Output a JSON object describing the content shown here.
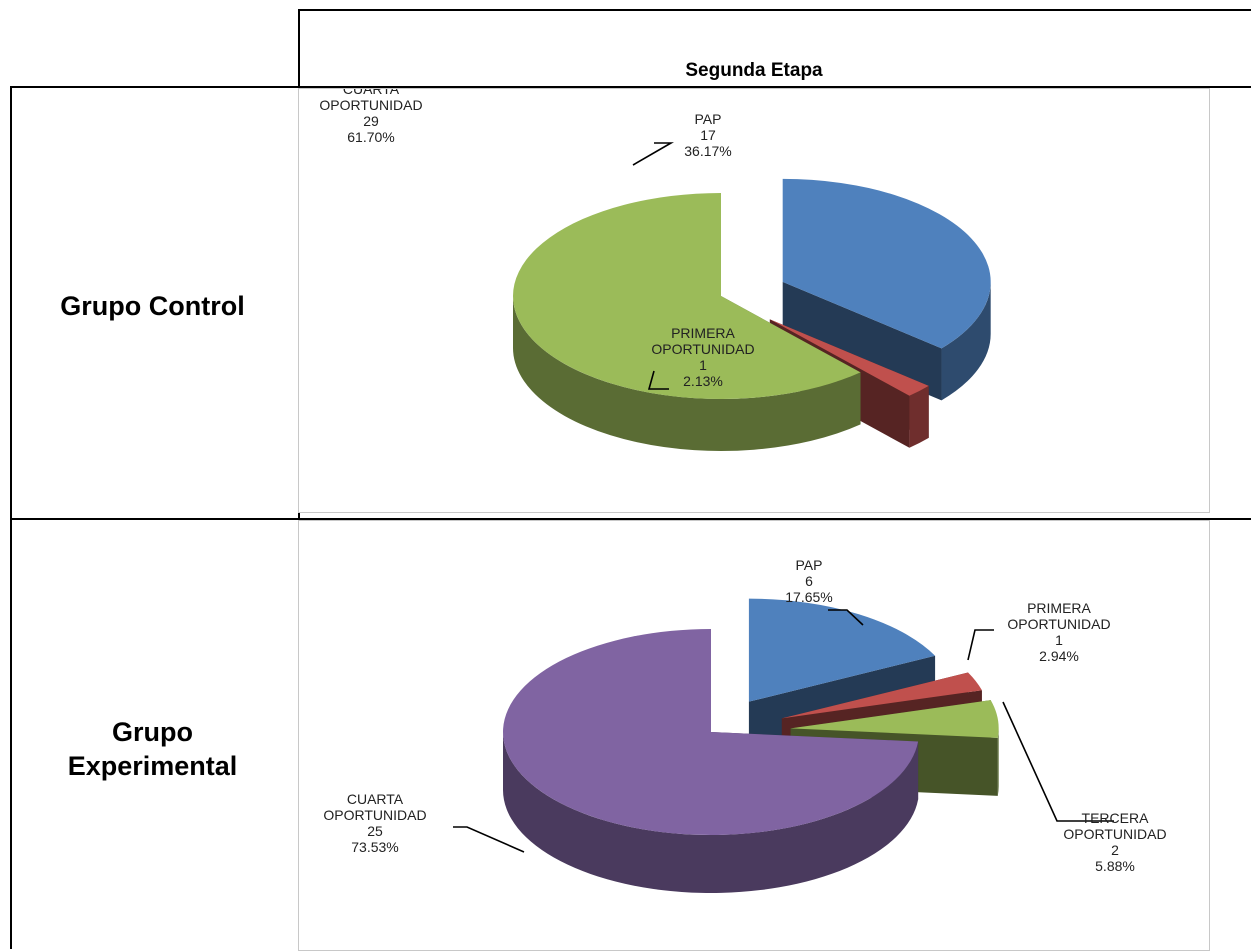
{
  "table": {
    "header": "Segunda Etapa",
    "rows": [
      {
        "label": "Grupo Control"
      },
      {
        "label_lines": [
          "Grupo",
          "Experimental"
        ]
      }
    ]
  },
  "chart_data": [
    {
      "type": "pie",
      "style": "3d-exploded",
      "slices": [
        {
          "name": "PAP",
          "label_lines": [
            "PAP"
          ],
          "value": 17,
          "value_label": "17",
          "percent": "36.17%",
          "color": "#4f81bd"
        },
        {
          "name": "PRIMERA OPORTUNIDAD",
          "label_lines": [
            "PRIMERA",
            "OPORTUNIDAD"
          ],
          "value": 1,
          "value_label": "1",
          "percent": "2.13%",
          "color": "#c0504d"
        },
        {
          "name": "CUARTA OPORTUNIDAD",
          "label_lines": [
            "CUARTA",
            "OPORTUNIDAD"
          ],
          "value": 29,
          "value_label": "29",
          "percent": "61.70%",
          "color": "#9bbb59"
        }
      ]
    },
    {
      "type": "pie",
      "style": "3d-exploded",
      "slices": [
        {
          "name": "PAP",
          "label_lines": [
            "PAP"
          ],
          "value": 6,
          "value_label": "6",
          "percent": "17.65%",
          "color": "#4f81bd"
        },
        {
          "name": "PRIMERA OPORTUNIDAD",
          "label_lines": [
            "PRIMERA",
            "OPORTUNIDAD"
          ],
          "value": 1,
          "value_label": "1",
          "percent": "2.94%",
          "color": "#c0504d"
        },
        {
          "name": "TERCERA OPORTUNIDAD",
          "label_lines": [
            "TERCERA",
            "OPORTUNIDAD"
          ],
          "value": 2,
          "value_label": "2",
          "percent": "5.88%",
          "color": "#9bbb59"
        },
        {
          "name": "CUARTA OPORTUNIDAD",
          "label_lines": [
            "CUARTA",
            "OPORTUNIDAD"
          ],
          "value": 25,
          "value_label": "25",
          "percent": "73.53%",
          "color": "#8064a2"
        }
      ]
    }
  ]
}
